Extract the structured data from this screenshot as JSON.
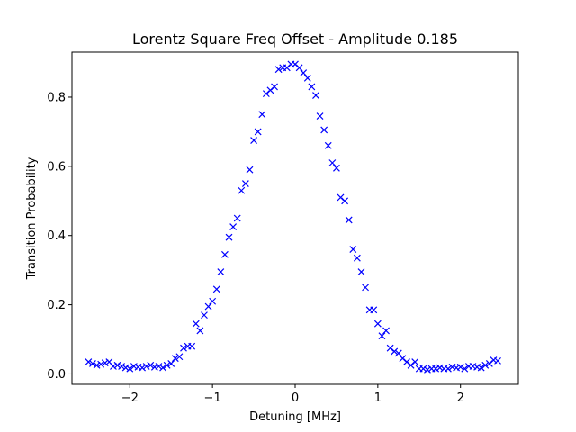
{
  "chart_data": {
    "type": "scatter",
    "title": "Lorentz Square Freq Offset - Amplitude 0.185",
    "xlabel": "Detuning [MHz]",
    "ylabel": "Transition Probability",
    "xlim": [
      -2.7,
      2.7
    ],
    "ylim": [
      -0.03,
      0.93
    ],
    "xticks": [
      {
        "value": -2,
        "label": "−2"
      },
      {
        "value": -1,
        "label": "−1"
      },
      {
        "value": 0,
        "label": "0"
      },
      {
        "value": 1,
        "label": "1"
      },
      {
        "value": 2,
        "label": "2"
      }
    ],
    "yticks": [
      {
        "value": 0.0,
        "label": "0.0"
      },
      {
        "value": 0.2,
        "label": "0.2"
      },
      {
        "value": 0.4,
        "label": "0.4"
      },
      {
        "value": 0.6,
        "label": "0.6"
      },
      {
        "value": 0.8,
        "label": "0.8"
      }
    ],
    "grid": false,
    "marker": "x",
    "color": "#0000ff",
    "series": [
      {
        "x": [
          -2.5,
          -2.45,
          -2.4,
          -2.35,
          -2.3,
          -2.25,
          -2.2,
          -2.15,
          -2.1,
          -2.05,
          -2.0,
          -1.95,
          -1.9,
          -1.85,
          -1.8,
          -1.75,
          -1.7,
          -1.65,
          -1.6,
          -1.55,
          -1.5,
          -1.45,
          -1.4,
          -1.35,
          -1.3,
          -1.25,
          -1.2,
          -1.15,
          -1.1,
          -1.05,
          -1.0,
          -0.95,
          -0.9,
          -0.85,
          -0.8,
          -0.75,
          -0.7,
          -0.65,
          -0.6,
          -0.55,
          -0.5,
          -0.45,
          -0.4,
          -0.35,
          -0.3,
          -0.25,
          -0.2,
          -0.15,
          -0.1,
          -0.05,
          0.0,
          0.05,
          0.1,
          0.15,
          0.2,
          0.25,
          0.3,
          0.35,
          0.4,
          0.45,
          0.5,
          0.55,
          0.6,
          0.65,
          0.7,
          0.75,
          0.8,
          0.85,
          0.9,
          0.95,
          1.0,
          1.05,
          1.1,
          1.15,
          1.2,
          1.25,
          1.3,
          1.35,
          1.4,
          1.45,
          1.5,
          1.55,
          1.6,
          1.65,
          1.7,
          1.75,
          1.8,
          1.85,
          1.9,
          1.95,
          2.0,
          2.05,
          2.1,
          2.15,
          2.2,
          2.25,
          2.3,
          2.35,
          2.4,
          2.45
        ],
        "y": [
          0.035,
          0.03,
          0.025,
          0.028,
          0.032,
          0.035,
          0.022,
          0.025,
          0.022,
          0.018,
          0.015,
          0.022,
          0.02,
          0.018,
          0.022,
          0.025,
          0.02,
          0.022,
          0.018,
          0.025,
          0.03,
          0.045,
          0.05,
          0.075,
          0.08,
          0.08,
          0.145,
          0.125,
          0.17,
          0.195,
          0.21,
          0.245,
          0.295,
          0.345,
          0.395,
          0.425,
          0.45,
          0.53,
          0.55,
          0.59,
          0.675,
          0.7,
          0.75,
          0.81,
          0.82,
          0.83,
          0.88,
          0.885,
          0.885,
          0.895,
          0.895,
          0.885,
          0.87,
          0.855,
          0.83,
          0.805,
          0.745,
          0.705,
          0.66,
          0.61,
          0.595,
          0.51,
          0.5,
          0.445,
          0.36,
          0.335,
          0.295,
          0.25,
          0.185,
          0.185,
          0.145,
          0.11,
          0.125,
          0.075,
          0.065,
          0.06,
          0.045,
          0.035,
          0.025,
          0.035,
          0.015,
          0.015,
          0.012,
          0.015,
          0.015,
          0.018,
          0.015,
          0.015,
          0.02,
          0.018,
          0.02,
          0.015,
          0.022,
          0.022,
          0.02,
          0.018,
          0.025,
          0.03,
          0.04,
          0.038
        ]
      }
    ]
  }
}
